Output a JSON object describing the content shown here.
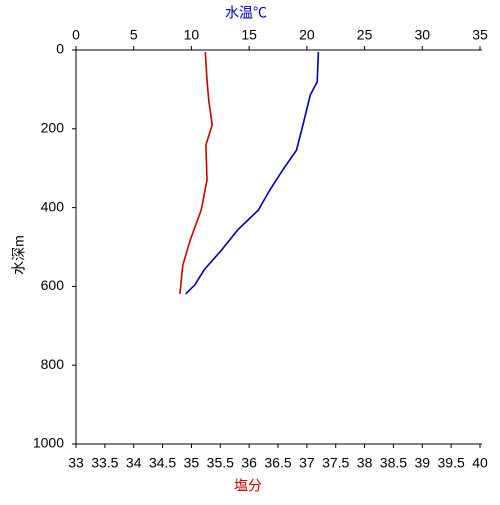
{
  "chart_data": {
    "type": "profile",
    "x2label": "水温℃",
    "xlabel": "塩分",
    "ylabel": "水深m",
    "x2lim": [
      0,
      35
    ],
    "x2ticks": [
      0,
      5,
      10,
      15,
      20,
      25,
      30,
      35
    ],
    "xlim": [
      33,
      40
    ],
    "xticks": [
      33,
      33.5,
      34,
      34.5,
      35,
      35.5,
      36,
      36.5,
      37,
      37.5,
      38,
      38.5,
      39,
      39.5,
      40
    ],
    "ylim": [
      0,
      1000
    ],
    "yticks": [
      0,
      200,
      400,
      600,
      800,
      1000
    ],
    "y_inverted": true,
    "series": [
      {
        "axis": "x2",
        "color": "#0000aa",
        "values": [
          21.0,
          20.9,
          20.3,
          19.6,
          19.1,
          17.9,
          16.8,
          15.8,
          14.0,
          12.6,
          11.1,
          10.3,
          9.5
        ],
        "depth": [
          5,
          81,
          114,
          198,
          254,
          305,
          355,
          406,
          457,
          508,
          558,
          596,
          619
        ]
      },
      {
        "axis": "x",
        "color": "#cc0000",
        "values": [
          35.24,
          35.27,
          35.3,
          35.36,
          35.25,
          35.27,
          35.17,
          34.98,
          34.85,
          34.8
        ],
        "depth": [
          5,
          76,
          127,
          190,
          241,
          330,
          406,
          482,
          546,
          619
        ]
      }
    ]
  }
}
